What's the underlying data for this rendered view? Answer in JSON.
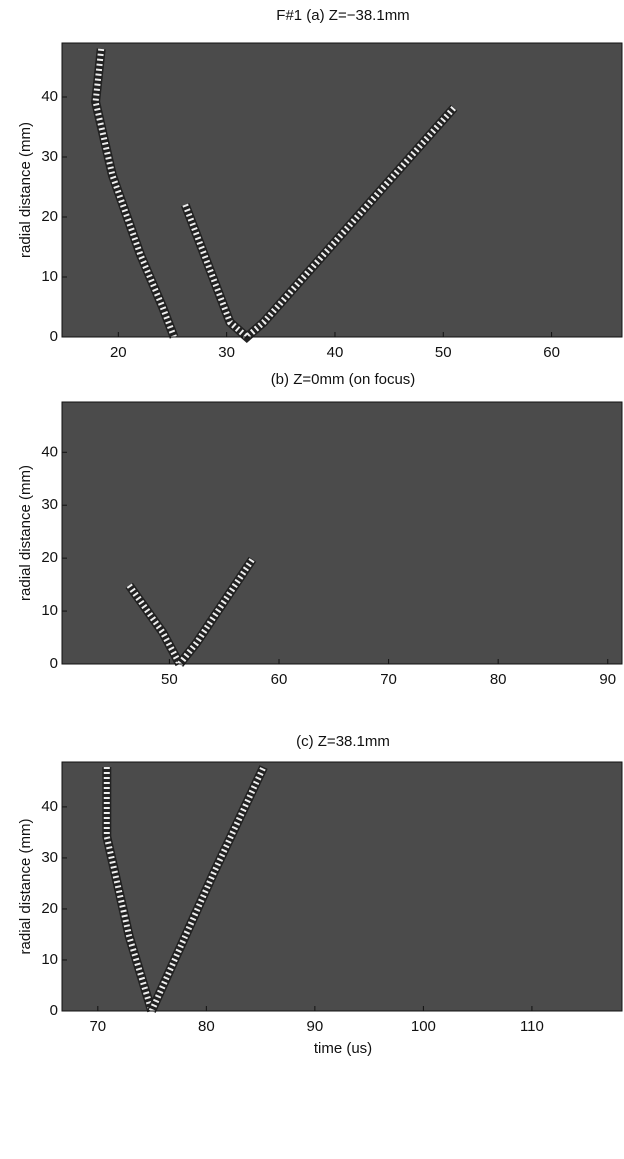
{
  "chart_data": [
    {
      "type": "image",
      "title": "F#1 (a) Z=−38.1mm",
      "y_label": "radial distance (mm)",
      "xlim": [
        14.8,
        66.5
      ],
      "ylim": [
        0,
        49
      ],
      "xticks": [
        20,
        30,
        40,
        50,
        60
      ],
      "yticks": [
        0,
        10,
        20,
        30,
        40
      ],
      "colormap": "gray"
    },
    {
      "type": "image",
      "title": "(b) Z=0mm (on focus)",
      "y_label": "radial distance (mm)",
      "xlim": [
        40.2,
        91.3
      ],
      "ylim": [
        0,
        49.5
      ],
      "xticks": [
        50,
        60,
        70,
        80,
        90
      ],
      "yticks": [
        0,
        10,
        20,
        30,
        40
      ],
      "colormap": "gray"
    },
    {
      "type": "image",
      "title": "(c) Z=38.1mm",
      "y_label": "radial distance (mm)",
      "x_label": "time (us)",
      "xlim": [
        66.7,
        118.3
      ],
      "ylim": [
        0,
        48.8
      ],
      "xticks": [
        70,
        80,
        90,
        100,
        110
      ],
      "yticks": [
        0,
        10,
        20,
        30,
        40
      ],
      "colormap": "gray"
    }
  ]
}
